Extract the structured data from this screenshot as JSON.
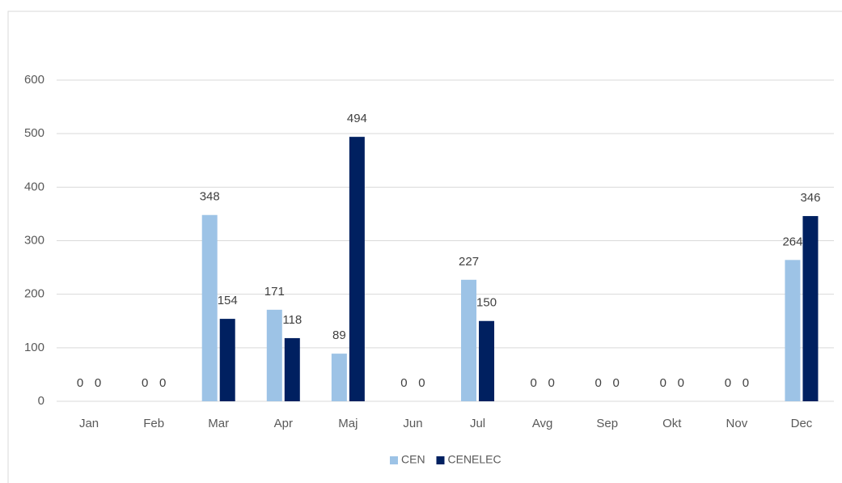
{
  "chart_data": {
    "type": "bar",
    "categories": [
      "Jan",
      "Feb",
      "Mar",
      "Apr",
      "Maj",
      "Jun",
      "Jul",
      "Avg",
      "Sep",
      "Okt",
      "Nov",
      "Dec"
    ],
    "series": [
      {
        "name": "CEN",
        "color": "#9dc3e6",
        "values": [
          0,
          0,
          348,
          171,
          89,
          0,
          227,
          0,
          0,
          0,
          0,
          264
        ]
      },
      {
        "name": "CENELEC",
        "color": "#002060",
        "values": [
          0,
          0,
          154,
          118,
          494,
          0,
          150,
          0,
          0,
          0,
          0,
          346
        ]
      }
    ],
    "ylim": [
      0,
      600
    ],
    "yticks": [
      0,
      100,
      200,
      300,
      400,
      500,
      600
    ],
    "grid": true,
    "legend": "bottom"
  }
}
